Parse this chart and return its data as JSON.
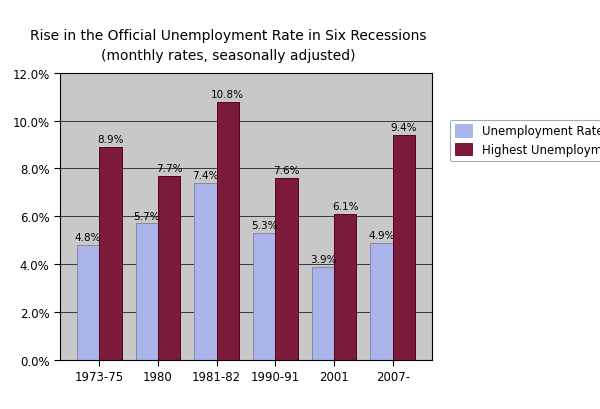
{
  "title_line1": "Rise in the Official Unemployment Rate in Six Recessions",
  "title_line2": "(monthly rates, seasonally adjusted)",
  "categories": [
    "1973-75",
    "1980",
    "1981-82",
    "1990-91",
    "2001",
    "2007-"
  ],
  "onset_values": [
    4.8,
    5.7,
    7.4,
    5.3,
    3.9,
    4.9
  ],
  "highest_values": [
    8.9,
    7.7,
    10.8,
    7.6,
    6.1,
    9.4
  ],
  "onset_labels": [
    "4.8%",
    "5.7%",
    "7.4%",
    "5.3%",
    "3.9%",
    "4.9%"
  ],
  "highest_labels": [
    "8.9%",
    "7.7%",
    "10.8%",
    "7.6%",
    "6.1%",
    "9.4%"
  ],
  "onset_color": "#aab4e8",
  "highest_color": "#7b1a3a",
  "bar_width": 0.38,
  "ylim": [
    0,
    12.0
  ],
  "yticks": [
    0,
    2.0,
    4.0,
    6.0,
    8.0,
    10.0,
    12.0
  ],
  "ytick_labels": [
    "0.0%",
    "2.0%",
    "4.0%",
    "6.0%",
    "8.0%",
    "10.0%",
    "12.0%"
  ],
  "legend_onset": "Unemployment Rate at Onset",
  "legend_highest": "Highest Unemployment Rate",
  "plot_bg_color": "#c8c8c8",
  "fig_bg_color": "#ffffff",
  "label_fontsize": 7.5,
  "title_fontsize": 10,
  "tick_fontsize": 8.5,
  "legend_fontsize": 8.5,
  "grid_color": "#000000",
  "grid_linewidth": 0.5
}
